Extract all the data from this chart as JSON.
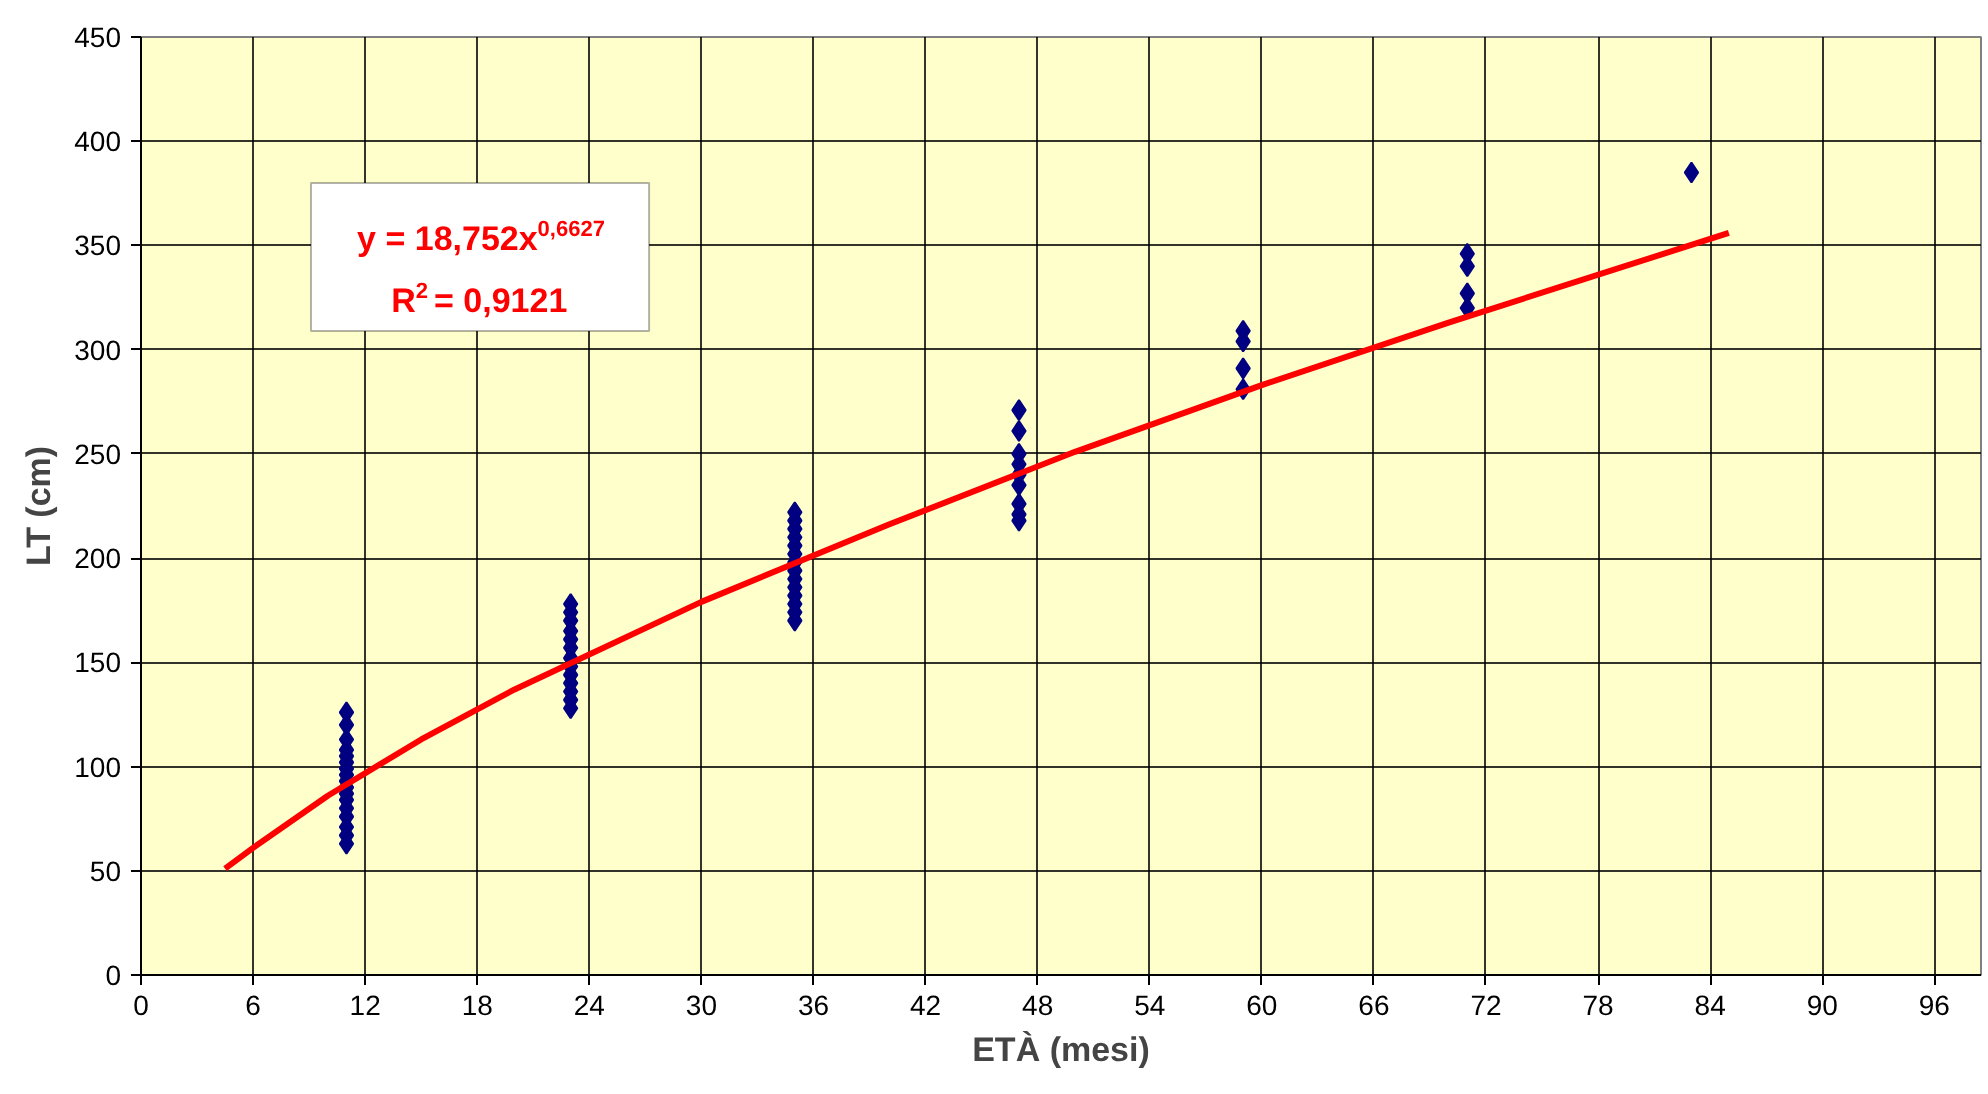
{
  "chart_data": {
    "type": "scatter",
    "xlabel": "ETÀ (mesi)",
    "ylabel": "LT (cm)",
    "xlim": [
      0,
      98.5
    ],
    "xticks": [
      0,
      6,
      12,
      18,
      24,
      30,
      36,
      42,
      48,
      54,
      60,
      66,
      72,
      78,
      84,
      90,
      96
    ],
    "ylim": [
      0,
      450
    ],
    "yticks": [
      0,
      50,
      100,
      150,
      200,
      250,
      300,
      350,
      400,
      450
    ],
    "grid": true,
    "annotations": [
      "y = 18,752x$^{0,6627}$",
      "R$^{2}$ = 0,9121"
    ],
    "series": [
      {
        "marker": "diamond",
        "color": "#000080",
        "x": [
          11,
          11,
          11,
          11,
          11,
          11,
          11,
          11,
          11,
          11,
          11,
          11,
          11,
          11,
          11,
          11,
          11,
          23,
          23,
          23,
          23,
          23,
          23,
          23,
          23,
          23,
          23,
          23,
          23,
          23,
          35,
          35,
          35,
          35,
          35,
          35,
          35,
          35,
          35,
          35,
          35,
          35,
          35,
          35,
          47,
          47,
          47,
          47,
          47,
          47,
          47,
          47,
          47,
          59,
          59,
          59,
          59,
          71,
          71,
          71,
          71,
          83
        ],
        "values": [
          63,
          67,
          71,
          76,
          80,
          84,
          87,
          90,
          93,
          96,
          99,
          102,
          105,
          108,
          113,
          120,
          126,
          128,
          132,
          136,
          140,
          144,
          148,
          152,
          157,
          161,
          165,
          170,
          174,
          178,
          170,
          174,
          178,
          182,
          186,
          190,
          194,
          198,
          202,
          206,
          210,
          214,
          218,
          222,
          218,
          221,
          226,
          235,
          240,
          245,
          250,
          261,
          271,
          281,
          291,
          304,
          309,
          320,
          327,
          340,
          346,
          385
        ]
      },
      {
        "type": "line",
        "color": "#ff0000",
        "x": [
          4.5,
          6,
          10,
          15,
          20,
          30,
          40,
          50,
          60,
          70,
          85
        ],
        "values": [
          51,
          61,
          86,
          113,
          137,
          179,
          216,
          251,
          283,
          313,
          356
        ]
      }
    ]
  }
}
